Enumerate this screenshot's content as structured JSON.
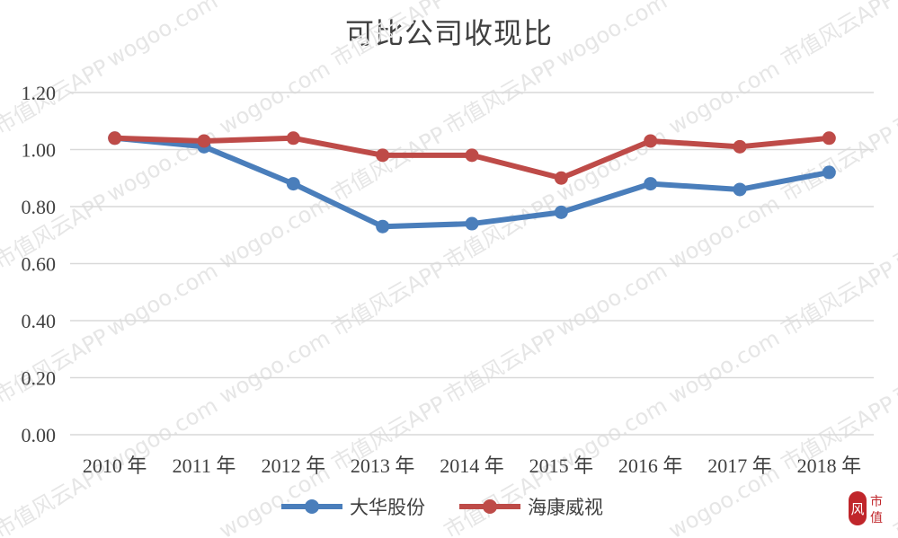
{
  "chart_data": {
    "type": "line",
    "title": "可比公司收现比",
    "xlabel": "",
    "ylabel": "",
    "categories": [
      "2010 年",
      "2011 年",
      "2012 年",
      "2013 年",
      "2014 年",
      "2015 年",
      "2016 年",
      "2017 年",
      "2018 年"
    ],
    "series": [
      {
        "name": "大华股份",
        "color": "#4a7ebb",
        "values": [
          1.04,
          1.01,
          0.88,
          0.73,
          0.74,
          0.78,
          0.88,
          0.86,
          0.92
        ]
      },
      {
        "name": "海康威视",
        "color": "#be4b48",
        "values": [
          1.04,
          1.03,
          1.04,
          0.98,
          0.98,
          0.9,
          1.03,
          1.01,
          1.04
        ]
      }
    ],
    "ylim": [
      0,
      1.2
    ],
    "yticks": [
      "0.00",
      "0.20",
      "0.40",
      "0.60",
      "0.80",
      "1.00",
      "1.20"
    ],
    "grid": true,
    "legend_position": "bottom"
  },
  "watermark": {
    "text_cn": "市值风云APP",
    "text_url": "wogoo.com"
  },
  "logo": {
    "left_char": "风",
    "right_chars": [
      "市",
      "值"
    ],
    "color": "#c0262b"
  }
}
